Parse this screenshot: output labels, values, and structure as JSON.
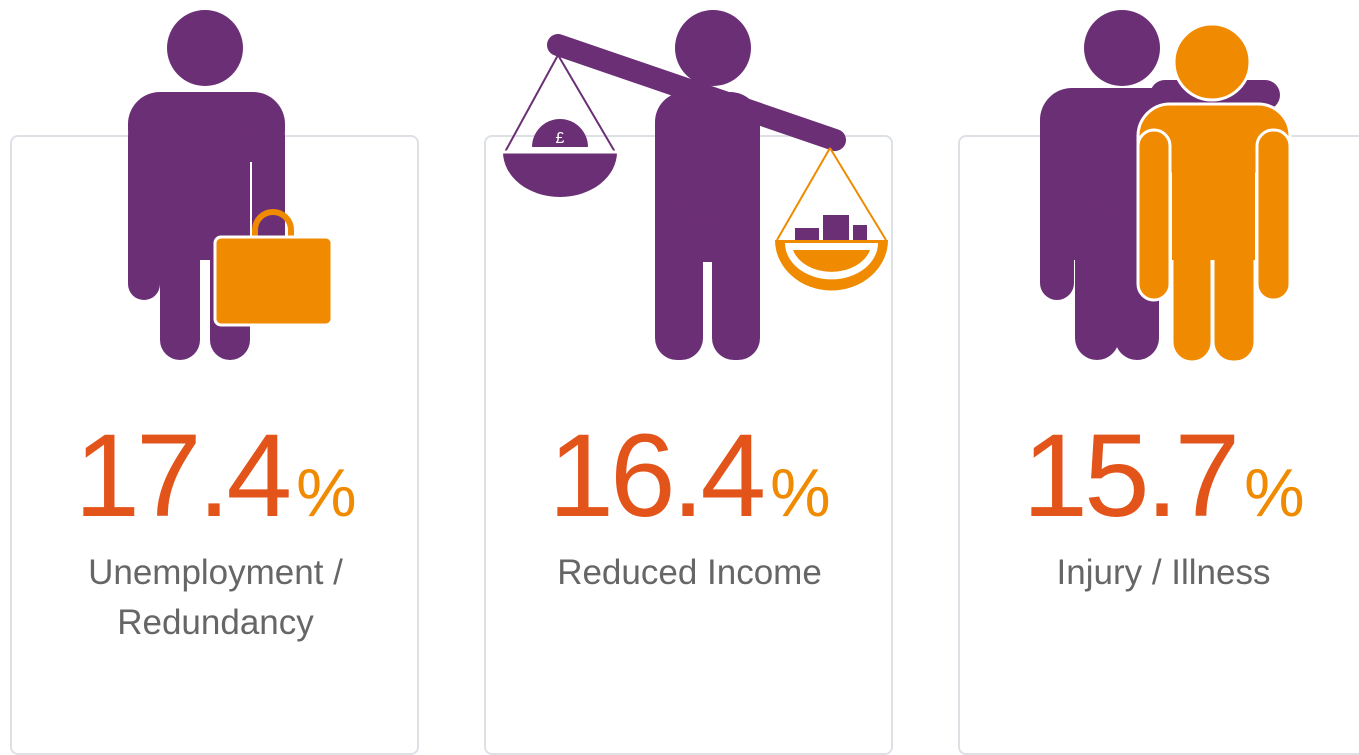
{
  "cards": [
    {
      "value": 17.4,
      "unit": "%",
      "label": "Unemployment / Redundancy"
    },
    {
      "value": 16.4,
      "unit": "%",
      "label": "Reduced Income"
    },
    {
      "value": 15.7,
      "unit": "%",
      "label": "Injury / Illness"
    }
  ]
}
